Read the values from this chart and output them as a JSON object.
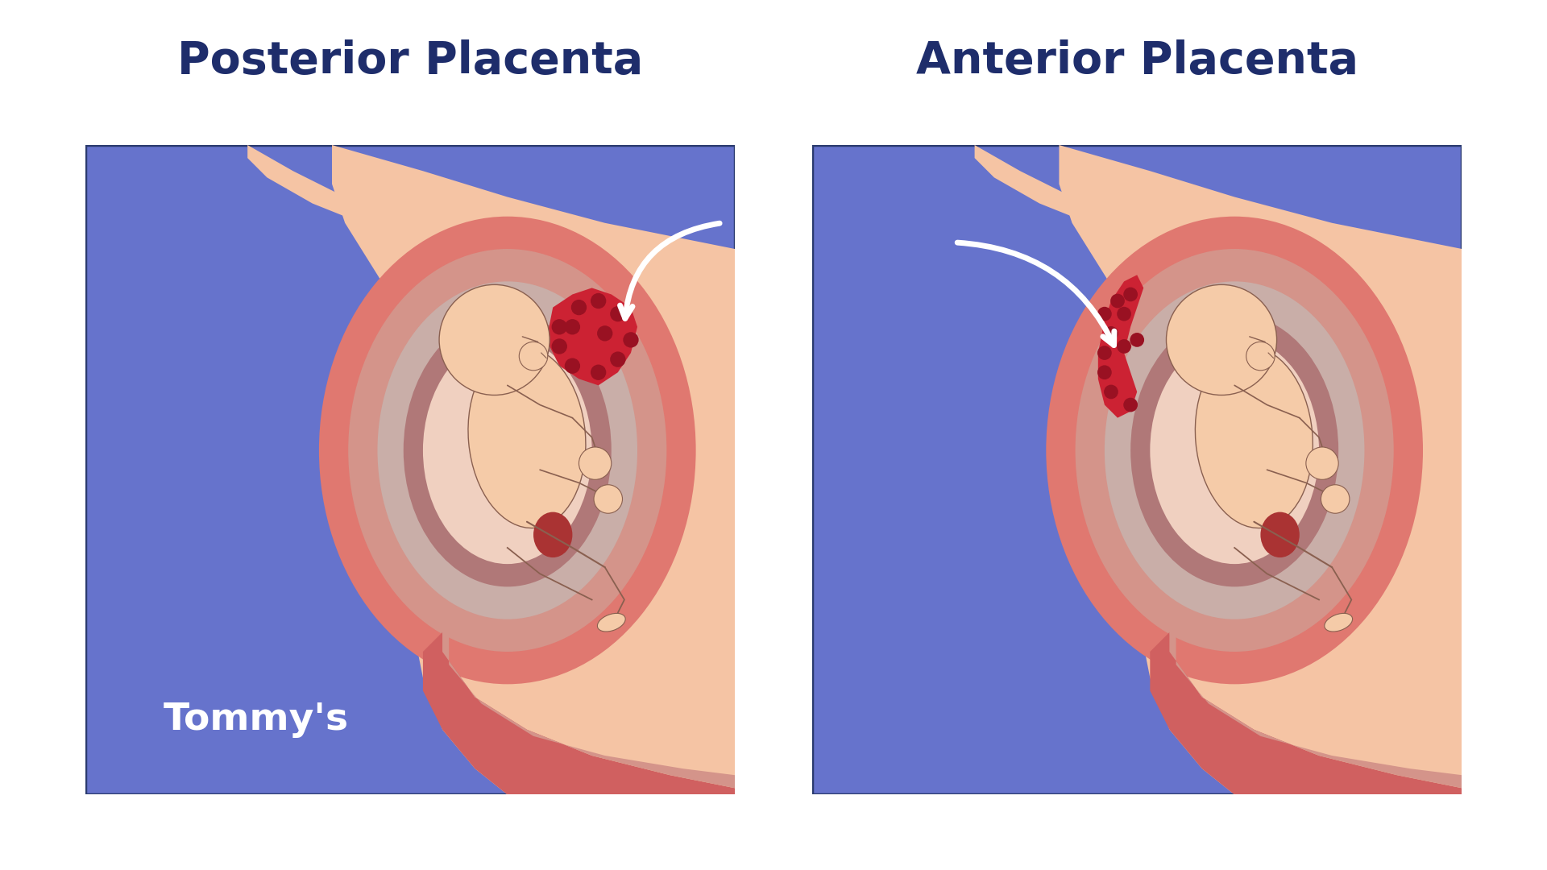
{
  "bg_color": "#ffffff",
  "title_left": "Posterior Placenta",
  "title_right": "Anterior Placenta",
  "title_color": "#1e2d6b",
  "title_fontsize": 40,
  "title_fontweight": "bold",
  "box_bg": "#6673cc",
  "skin_color": "#f5c4a4",
  "uterus_outer_color": "#e07870",
  "uterus_mid_color": "#d4948a",
  "uterus_inner_color": "#c9aea8",
  "amniotic_color": "#f0d0c0",
  "uterus_dark_inner": "#b07878",
  "fetus_skin": "#f5cba8",
  "fetus_line": "#8a6050",
  "placenta_red": "#cc2233",
  "placenta_dark": "#991122",
  "arrow_color": "#ffffff",
  "tommy_color": "#ffffff",
  "tommy_text": "Tommy's",
  "tommy_fontsize": 34,
  "box_border": "#2a3a6e",
  "cervix_color": "#cc5548",
  "lower_uterus": "#d06060"
}
